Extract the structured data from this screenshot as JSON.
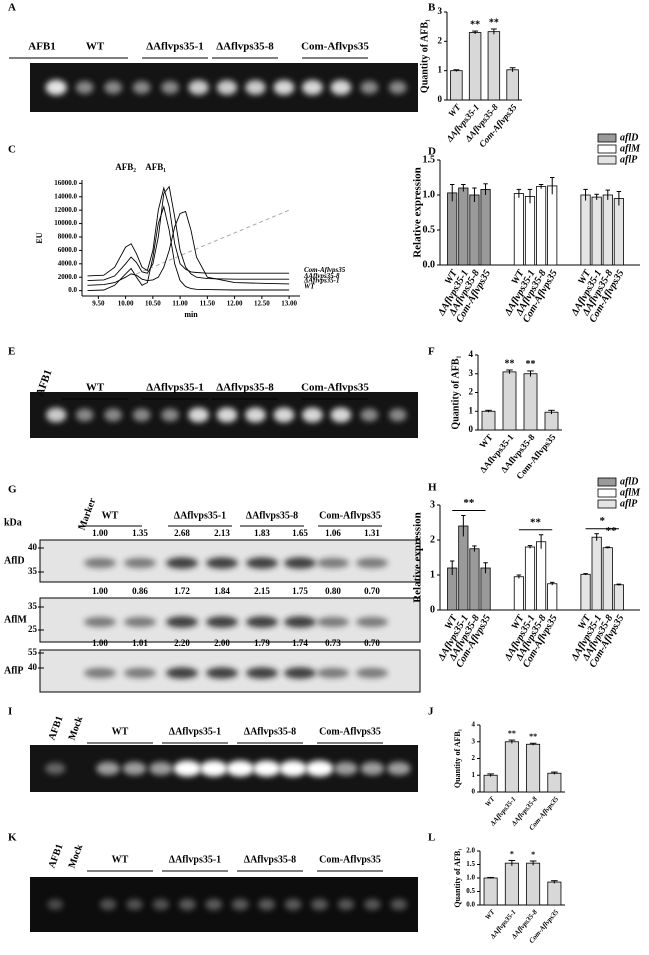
{
  "gels": [
    {
      "letter": "A",
      "labels": [
        "AFB1",
        "WT",
        "ΔAflvps35-1",
        "ΔAflvps35-8",
        "Com-Aflvps35"
      ]
    },
    {
      "letter": "E",
      "labels": [
        "AFB1",
        "WT",
        "ΔAflvps35-1",
        "ΔAflvps35-8",
        "Com-Aflvps35"
      ]
    },
    {
      "letter": "I",
      "labels": [
        "AFB1",
        "Mock",
        "WT",
        "ΔAflvps35-1",
        "ΔAflvps35-8",
        "Com-Aflvps35"
      ]
    },
    {
      "letter": "K",
      "labels": [
        "AFB1",
        "Mock",
        "WT",
        "ΔAflvps35-1",
        "ΔAflvps35-8",
        "Com-Aflvps35"
      ]
    }
  ],
  "western": {
    "letter": "G",
    "unit": "kDa",
    "marker": "Marker",
    "groups": [
      "WT",
      "ΔAflvps35-1",
      "ΔAflvps35-8",
      "Com-Aflvps35"
    ],
    "blots": [
      {
        "name": "AflD",
        "sizes": [
          40,
          35
        ],
        "ratios": [
          "1.00",
          "1.35",
          "2.68",
          "2.13",
          "1.83",
          "1.65",
          "1.06",
          "1.31"
        ]
      },
      {
        "name": "AflM",
        "sizes": [
          35,
          25
        ],
        "ratios": [
          "1.00",
          "0.86",
          "1.72",
          "1.84",
          "2.15",
          "1.75",
          "0.80",
          "0.70"
        ]
      },
      {
        "name": "AflP",
        "sizes": [
          55,
          40
        ],
        "ratios": [
          "1.00",
          "1.01",
          "2.20",
          "2.00",
          "1.79",
          "1.74",
          "0.73",
          "0.70"
        ]
      }
    ]
  },
  "chart_data": [
    {
      "type": "bar",
      "letter": "B",
      "y_label": "Quantity of AFB₁",
      "categories": [
        "WT",
        "ΔAflvps35-1",
        "ΔAflvps35-8",
        "Com-Aflvps35"
      ],
      "values": [
        1.0,
        2.3,
        2.33,
        1.03
      ],
      "errors": [
        0.03,
        0.05,
        0.09,
        0.07
      ],
      "significance": [
        null,
        "**",
        "**",
        null
      ],
      "color": "#d8d8d8",
      "ylim": [
        0,
        3
      ],
      "yticks": [
        0,
        1,
        2,
        3
      ]
    },
    {
      "type": "line",
      "letter": "C",
      "y_label": "EU",
      "x_label": "min",
      "annotations": [
        "AFB₂",
        "AFB₁"
      ],
      "x": [
        9.3,
        9.6,
        9.8,
        10.0,
        10.1,
        10.2,
        10.3,
        10.4,
        10.5,
        10.6,
        10.7,
        10.8,
        10.9,
        11.0,
        11.1,
        11.2,
        11.3,
        11.5,
        12.0,
        12.5,
        13.0
      ],
      "series": [
        {
          "name": "WT",
          "color": "#000000",
          "values": [
            0,
            100,
            800,
            2500,
            3300,
            2000,
            800,
            1200,
            5000,
            10000,
            12500,
            9000,
            4000,
            1500,
            600,
            300,
            200,
            150,
            100,
            100,
            100
          ]
        },
        {
          "name": "ΔAflvps35-1",
          "color": "#000000",
          "values": [
            800,
            900,
            1200,
            2000,
            2500,
            2300,
            1700,
            1500,
            1600,
            2000,
            3500,
            6000,
            9500,
            11500,
            11800,
            9000,
            5000,
            2000,
            1200,
            1100,
            1000
          ]
        },
        {
          "name": "ΔAflvps35-8",
          "color": "#000000",
          "values": [
            1500,
            1600,
            2200,
            4000,
            5000,
            4200,
            2800,
            2600,
            4000,
            8000,
            14500,
            15500,
            11000,
            6000,
            3500,
            2500,
            2000,
            1800,
            1700,
            1700,
            1700
          ]
        },
        {
          "name": "Com-Aflvps35",
          "color": "#000000",
          "values": [
            2200,
            2300,
            3500,
            6500,
            7000,
            5500,
            3500,
            3000,
            6000,
            12000,
            15300,
            12500,
            7000,
            4000,
            3200,
            2800,
            2700,
            2600,
            2600,
            2600,
            2600
          ]
        }
      ],
      "xlim": [
        9.2,
        13.2
      ],
      "ylim": [
        -800,
        16500
      ],
      "xticks": [
        {
          "value": 9.5,
          "label": "9.50"
        },
        {
          "value": 10,
          "label": "10.00"
        },
        {
          "value": 10.5,
          "label": "10.50"
        },
        {
          "value": 11,
          "label": "11.00"
        },
        {
          "value": 11.5,
          "label": "11.50"
        },
        {
          "value": 12,
          "label": "12.00"
        },
        {
          "value": 12.5,
          "label": "12.50"
        },
        {
          "value": 13,
          "label": "13.00"
        }
      ],
      "yticks": [
        {
          "value": 0,
          "label": "0.0"
        },
        {
          "value": 2000,
          "label": "2000.0"
        },
        {
          "value": 4000,
          "label": "4000.0"
        },
        {
          "value": 6000,
          "label": "6000.0"
        },
        {
          "value": 8000,
          "label": "8000.0"
        },
        {
          "value": 10000,
          "label": "10000.0"
        },
        {
          "value": 12000,
          "label": "12000.0"
        },
        {
          "value": 14000,
          "label": "14000.0"
        },
        {
          "value": 16000,
          "label": "16000.0"
        }
      ]
    },
    {
      "type": "grouped_bar",
      "letter": "D",
      "y_label": "Relative expression",
      "categories": [
        "WT",
        "ΔAflvps35-1",
        "ΔAflvps35-8",
        "Com-Aflvps35"
      ],
      "series": [
        {
          "name": "aflD",
          "color": "#9a9a9a",
          "values": [
            1.03,
            1.1,
            1.0,
            1.08
          ],
          "errors": [
            0.12,
            0.05,
            0.1,
            0.08
          ]
        },
        {
          "name": "aflM",
          "color": "#ffffff",
          "values": [
            1.02,
            0.98,
            1.12,
            1.13
          ],
          "errors": [
            0.06,
            0.1,
            0.03,
            0.12
          ]
        },
        {
          "name": "aflP",
          "color": "#e4e4e4",
          "values": [
            1.0,
            0.97,
            1.0,
            0.95
          ],
          "errors": [
            0.08,
            0.04,
            0.07,
            0.1
          ]
        }
      ],
      "ylim": [
        0,
        1.5
      ],
      "yticks": [
        {
          "value": 0,
          "label": "0.0"
        },
        0.5,
        {
          "value": 1,
          "label": "1.0"
        },
        1.5
      ]
    },
    {
      "type": "bar",
      "letter": "F",
      "y_label": "Quantity of AFB₁",
      "categories": [
        "WT",
        "ΔAflvps35-1",
        "ΔAflvps35-8",
        "Com-Aflvps35"
      ],
      "values": [
        1.0,
        3.1,
        3.0,
        0.95
      ],
      "errors": [
        0.05,
        0.1,
        0.15,
        0.1
      ],
      "significance": [
        null,
        "**",
        "**",
        null
      ],
      "color": "#d8d8d8",
      "ylim": [
        0,
        4
      ],
      "yticks": [
        0,
        1,
        2,
        3,
        4
      ]
    },
    {
      "type": "grouped_bar",
      "letter": "H",
      "y_label": "Relative expression",
      "categories": [
        "WT",
        "ΔAflvps35-1",
        "ΔAflvps35-8",
        "Com-Aflvps35"
      ],
      "series": [
        {
          "name": "aflD",
          "color": "#9a9a9a",
          "values": [
            1.2,
            2.4,
            1.75,
            1.2
          ],
          "errors": [
            0.2,
            0.3,
            0.08,
            0.15
          ],
          "significance": [
            "**"
          ]
        },
        {
          "name": "aflM",
          "color": "#ffffff",
          "values": [
            0.95,
            1.8,
            1.95,
            0.75
          ],
          "errors": [
            0.05,
            0.04,
            0.2,
            0.04
          ],
          "significance": [
            "**"
          ]
        },
        {
          "name": "aflP",
          "color": "#e4e4e4",
          "values": [
            1.02,
            2.08,
            1.78,
            0.72
          ],
          "errors": [
            0.02,
            0.1,
            0.02,
            0.02
          ],
          "significance": [
            "*",
            "**"
          ]
        }
      ],
      "ylim": [
        0,
        3
      ],
      "yticks": [
        0,
        1,
        2,
        3
      ]
    },
    {
      "type": "bar",
      "letter": "J",
      "y_label": "Quantity of AFB₁",
      "categories": [
        "WT",
        "ΔAflvps35-1",
        "ΔAflvps35-8",
        "Com-Aflvps35"
      ],
      "values": [
        1.0,
        3.0,
        2.85,
        1.12
      ],
      "errors": [
        0.08,
        0.1,
        0.06,
        0.07
      ],
      "significance": [
        null,
        "**",
        "**",
        null
      ],
      "color": "#d8d8d8",
      "ylim": [
        0,
        4
      ],
      "yticks": [
        0,
        1,
        2,
        3,
        4
      ]
    },
    {
      "type": "bar",
      "letter": "L",
      "y_label": "Quantity of AFB₁",
      "categories": [
        "WT",
        "ΔAflvps35-1",
        "ΔAflvps35-8",
        "Com-Aflvps35"
      ],
      "values": [
        1.0,
        1.55,
        1.55,
        0.85
      ],
      "errors": [
        0.02,
        0.1,
        0.08,
        0.05
      ],
      "significance": [
        null,
        "*",
        "*",
        null
      ],
      "color": "#d8d8d8",
      "ylim": [
        0,
        2
      ],
      "yticks": [
        {
          "value": 0,
          "label": "0.0"
        },
        0.5,
        {
          "value": 1,
          "label": "1.0"
        },
        1.5,
        {
          "value": 2,
          "label": "2.0"
        }
      ]
    }
  ]
}
